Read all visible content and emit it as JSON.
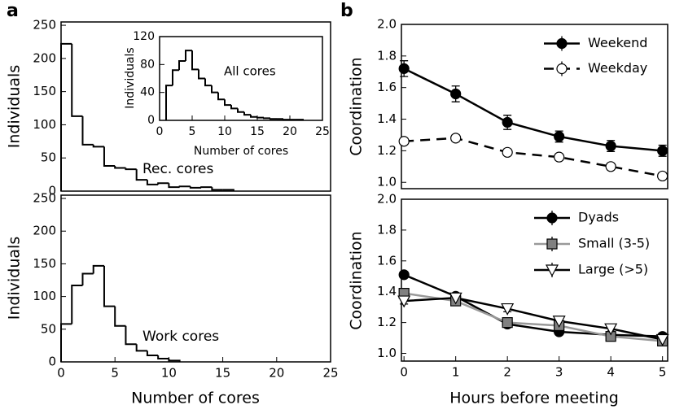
{
  "chart_data": [
    {
      "type": "histogram",
      "panel": "a",
      "y_label": "Individuals",
      "annotation": "Rec. cores",
      "bins": [
        0,
        1,
        2,
        3,
        4,
        5,
        6,
        7,
        8,
        9,
        10,
        11,
        12,
        13,
        14,
        15,
        16
      ],
      "values": [
        222,
        113,
        70,
        67,
        38,
        35,
        33,
        17,
        10,
        12,
        6,
        7,
        5,
        6,
        2,
        2
      ],
      "color": "#000000",
      "xlim": [
        0,
        25
      ],
      "ylim": [
        0,
        255
      ],
      "yticks": [
        0,
        50,
        100,
        150,
        200,
        250
      ]
    },
    {
      "type": "histogram",
      "x_label": "Number of cores",
      "y_label": "Individuals",
      "annotation": "All cores",
      "bins": [
        1,
        2,
        3,
        4,
        5,
        6,
        7,
        8,
        9,
        10,
        11,
        12,
        13,
        14,
        15,
        16,
        17,
        18,
        19,
        20,
        21,
        22
      ],
      "values": [
        50,
        72,
        85,
        100,
        73,
        60,
        50,
        40,
        30,
        22,
        17,
        12,
        8,
        5,
        4,
        3,
        2,
        2,
        1,
        1,
        1
      ],
      "color": "#000000",
      "xlim": [
        0,
        25
      ],
      "ylim": [
        0,
        120
      ],
      "xticks": [
        0,
        5,
        10,
        15,
        20,
        25
      ],
      "yticks": [
        0,
        40,
        80,
        120
      ]
    },
    {
      "type": "histogram",
      "x_label": "Number of cores",
      "y_label": "Individuals",
      "annotation": "Work cores",
      "bins": [
        0,
        1,
        2,
        3,
        4,
        5,
        6,
        7,
        8,
        9,
        10,
        11
      ],
      "values": [
        58,
        117,
        135,
        147,
        85,
        55,
        27,
        17,
        10,
        5,
        2
      ],
      "color": "#000000",
      "xlim": [
        0,
        25
      ],
      "ylim": [
        0,
        255
      ],
      "xticks": [
        0,
        5,
        10,
        15,
        20,
        25
      ],
      "yticks": [
        0,
        50,
        100,
        150,
        200,
        250
      ]
    },
    {
      "type": "line",
      "panel": "b",
      "y_label": "Coordination",
      "legend": "upper right",
      "x": [
        0,
        1,
        2,
        3,
        4,
        5
      ],
      "series": [
        {
          "name": "Weekend",
          "color": "#000000",
          "marker_fill": "#000000",
          "marker": "circle",
          "linestyle": "solid",
          "values": [
            1.72,
            1.56,
            1.38,
            1.29,
            1.23,
            1.2
          ],
          "errors": [
            0.05,
            0.05,
            0.045,
            0.035,
            0.035,
            0.035
          ]
        },
        {
          "name": "Weekday",
          "color": "#000000",
          "marker_fill": "#ffffff",
          "marker": "circle",
          "linestyle": "dashed",
          "values": [
            1.26,
            1.28,
            1.19,
            1.16,
            1.1,
            1.04
          ],
          "errors": [
            0.02,
            0.02,
            0.02,
            0.02,
            0.02,
            0.02
          ]
        }
      ],
      "xlim": [
        -0.05,
        5.1
      ],
      "ylim": [
        0.96,
        2.0
      ],
      "yticks": [
        {
          "value": 1,
          "label": "1.0"
        },
        1.2,
        1.4,
        1.6,
        1.8,
        {
          "value": 2,
          "label": "2.0"
        }
      ]
    },
    {
      "type": "line",
      "x_label": "Hours before meeting",
      "y_label": "Coordination",
      "legend": "upper right",
      "x": [
        0,
        1,
        2,
        3,
        4,
        5
      ],
      "series": [
        {
          "name": "Dyads",
          "color": "#000000",
          "marker_fill": "#000000",
          "marker": "circle",
          "linestyle": "solid",
          "values": [
            1.51,
            1.37,
            1.19,
            1.14,
            1.12,
            1.11
          ],
          "errors": [
            0.02,
            0.02,
            0.02,
            0.02,
            0.02,
            0.02
          ]
        },
        {
          "name": "Small (3-5)",
          "color": "#999999",
          "marker_fill": "#808080",
          "marker": "square",
          "linestyle": "solid",
          "values": [
            1.39,
            1.34,
            1.2,
            1.18,
            1.11,
            1.08
          ],
          "errors": [
            0.02,
            0.02,
            0.02,
            0.02,
            0.02,
            0.02
          ]
        },
        {
          "name": "Large (>5)",
          "color": "#000000",
          "marker_fill": "#ffffff",
          "marker": "triangle_down",
          "linestyle": "solid",
          "values": [
            1.34,
            1.36,
            1.29,
            1.21,
            1.16,
            1.09
          ],
          "errors": [
            0.02,
            0.02,
            0.02,
            0.02,
            0.02,
            0.02
          ]
        }
      ],
      "xlim": [
        -0.05,
        5.1
      ],
      "ylim": [
        0.95,
        2.0
      ],
      "xticks": [
        0,
        1,
        2,
        3,
        4,
        5
      ],
      "yticks": [
        {
          "value": 1,
          "label": "1.0"
        },
        1.2,
        1.4,
        1.6,
        1.8,
        {
          "value": 2,
          "label": "2.0"
        }
      ]
    }
  ]
}
